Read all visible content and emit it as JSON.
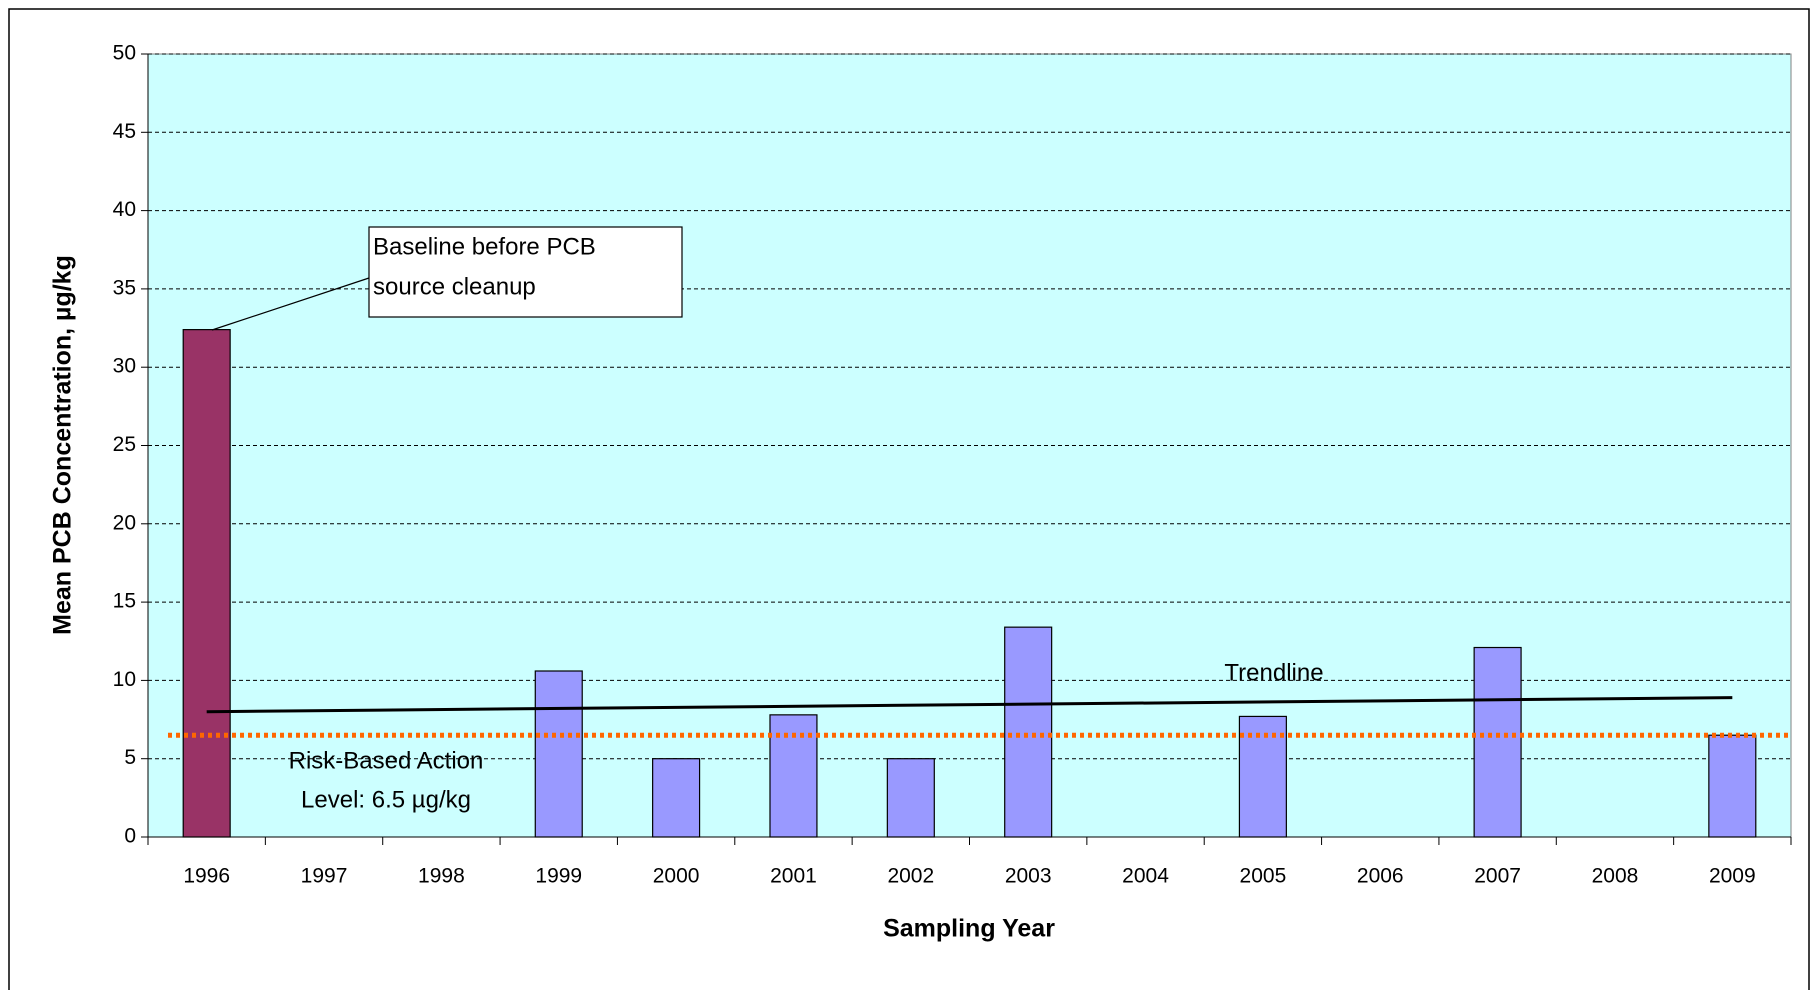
{
  "chart_data": {
    "type": "bar",
    "x_label": "Sampling Year",
    "y_label": "Mean PCB Concentration, µg/kg",
    "categories": [
      "1996",
      "1997",
      "1998",
      "1999",
      "2000",
      "2001",
      "2002",
      "2003",
      "2004",
      "2005",
      "2006",
      "2007",
      "2008",
      "2009"
    ],
    "values": [
      32.4,
      null,
      null,
      10.6,
      5,
      7.8,
      5,
      13.4,
      null,
      7.7,
      null,
      12.1,
      null,
      6.5
    ],
    "colors": [
      "#993366",
      "#9999ff",
      "#9999ff",
      "#9999ff",
      "#9999ff",
      "#9999ff",
      "#9999ff",
      "#9999ff",
      "#9999ff",
      "#9999ff",
      "#9999ff",
      "#9999ff",
      "#9999ff",
      "#9999ff"
    ],
    "ylim": [
      0,
      50
    ],
    "yticks": [
      0,
      5,
      10,
      15,
      20,
      25,
      30,
      35,
      40,
      45,
      50
    ],
    "grid": true,
    "background": "#ccffff",
    "trendline": {
      "name": "Trendline",
      "values": [
        8.0,
        8.9
      ],
      "color": "#000000"
    },
    "reference_line": {
      "value": 6.5,
      "color": "#ff6600",
      "label": [
        "Risk-Based Action",
        "Level:  6.5 µg/kg"
      ]
    },
    "annotation": [
      "Baseline before PCB",
      "source cleanup"
    ]
  }
}
